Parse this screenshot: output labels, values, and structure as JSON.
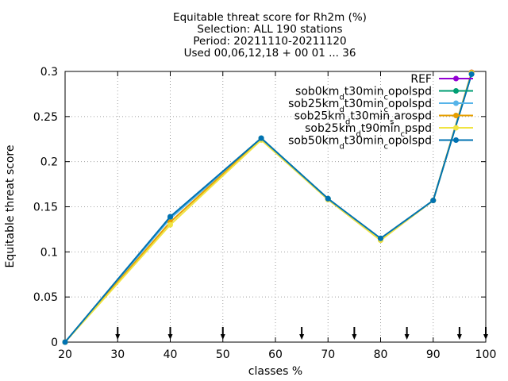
{
  "chart_data": {
    "type": "line",
    "title_lines": [
      "Equitable threat score  for Rh2m (%)",
      "Selection: ALL     190 stations",
      "Period: 20211110-20211120",
      "Used 00,06,12,18 + 00 01 ... 36"
    ],
    "xlabel": "classes %",
    "ylabel": "Equitable threat score",
    "xlim": [
      20,
      100
    ],
    "ylim": [
      0,
      0.3
    ],
    "x_ticks": [
      "20",
      "30",
      "40",
      "50",
      "60",
      "70",
      "80",
      "90",
      "100"
    ],
    "x_tick_values": [
      20,
      30,
      40,
      50,
      60,
      70,
      80,
      90,
      100
    ],
    "y_ticks": [
      "0",
      "0.05",
      "0.1",
      "0.15",
      "0.2",
      "0.25",
      "0.3"
    ],
    "y_tick_values": [
      0,
      0.05,
      0.1,
      0.15,
      0.2,
      0.25,
      0.3
    ],
    "grid": true,
    "legend_position": "top-right",
    "class_markers_x": [
      30,
      40,
      50,
      65,
      75,
      85,
      95,
      100
    ],
    "series": [
      {
        "name": "REF",
        "color": "#9400d3",
        "points": [
          [
            97.3,
            0.299
          ]
        ]
      },
      {
        "name": "sob0km_d t30min_c opolspd",
        "color": "#009e73",
        "points": [
          [
            20,
            0
          ],
          [
            40,
            0.138
          ],
          [
            57.3,
            0.226
          ],
          [
            70,
            0.159
          ],
          [
            80,
            0.114
          ],
          [
            90,
            0.157
          ],
          [
            97.3,
            0.297
          ]
        ]
      },
      {
        "name": "sob25km_d t30min_c opolspd",
        "color": "#56b4e9",
        "points": [
          [
            20,
            0
          ],
          [
            40,
            0.137
          ],
          [
            57.3,
            0.225
          ],
          [
            70,
            0.158
          ],
          [
            80,
            0.114
          ],
          [
            90,
            0.157
          ],
          [
            97.3,
            0.297
          ]
        ]
      },
      {
        "name": "sob25km_d t30min_s arospd",
        "color": "#e69f00",
        "points": [
          [
            20,
            0
          ],
          [
            40,
            0.133
          ],
          [
            57.3,
            0.225
          ],
          [
            70,
            0.158
          ],
          [
            80,
            0.113
          ],
          [
            90,
            0.157
          ],
          [
            97.3,
            0.299
          ]
        ]
      },
      {
        "name": "sob25km_d t90min_c pspd",
        "color": "#f0e442",
        "points": [
          [
            20,
            0
          ],
          [
            40,
            0.13
          ],
          [
            57.3,
            0.224
          ],
          [
            70,
            0.158
          ],
          [
            80,
            0.113
          ],
          [
            90,
            0.157
          ],
          [
            97.3,
            0.298
          ]
        ]
      },
      {
        "name": "sob50km_d t30min_c opolspd",
        "color": "#0072b2",
        "points": [
          [
            20,
            0
          ],
          [
            40,
            0.139
          ],
          [
            57.3,
            0.226
          ],
          [
            70,
            0.159
          ],
          [
            80,
            0.115
          ],
          [
            90,
            0.157
          ],
          [
            97.3,
            0.297
          ]
        ]
      }
    ],
    "legend_entries": [
      [
        {
          "t": "REF",
          "s": ""
        }
      ],
      [
        {
          "t": "sob0km",
          "s": ""
        },
        {
          "t": "d",
          "s": "sub"
        },
        {
          "t": "t30min",
          "s": ""
        },
        {
          "t": "c",
          "s": "sub"
        },
        {
          "t": "opolspd",
          "s": ""
        }
      ],
      [
        {
          "t": "sob25km",
          "s": ""
        },
        {
          "t": "d",
          "s": "sub"
        },
        {
          "t": "t30min",
          "s": ""
        },
        {
          "t": "c",
          "s": "sub"
        },
        {
          "t": "opolspd",
          "s": ""
        }
      ],
      [
        {
          "t": "sob25km",
          "s": ""
        },
        {
          "t": "d",
          "s": "sub"
        },
        {
          "t": "t30min",
          "s": ""
        },
        {
          "t": "s",
          "s": "sub"
        },
        {
          "t": "arospd",
          "s": ""
        }
      ],
      [
        {
          "t": "sob25km",
          "s": ""
        },
        {
          "t": "d",
          "s": "sub"
        },
        {
          "t": "t90min",
          "s": ""
        },
        {
          "t": "c",
          "s": "sub"
        },
        {
          "t": "pspd",
          "s": ""
        }
      ],
      [
        {
          "t": "sob50km",
          "s": ""
        },
        {
          "t": "d",
          "s": "sub"
        },
        {
          "t": "t30min",
          "s": ""
        },
        {
          "t": "c",
          "s": "sub"
        },
        {
          "t": "opolspd",
          "s": ""
        }
      ]
    ]
  }
}
